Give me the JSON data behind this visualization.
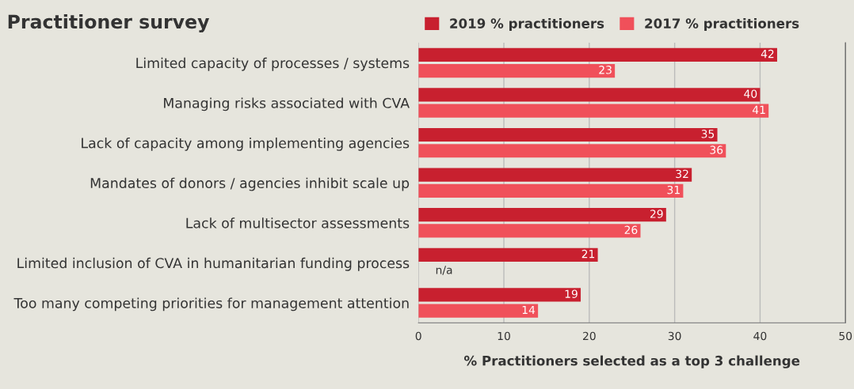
{
  "chart_data": {
    "type": "bar",
    "orientation": "horizontal",
    "title": "Practitioner survey",
    "xlabel": "% Practitioners selected as a top 3 challenge",
    "categories": [
      "Limited capacity of processes / systems",
      "Managing risks associated with CVA",
      "Lack of capacity among implementing agencies",
      "Mandates of donors / agencies inhibit scale up",
      "Lack of multisector assessments",
      "Limited inclusion of CVA in humanitarian funding process",
      "Too many competing priorities for management attention"
    ],
    "series": [
      {
        "name": "2019 % practitioners",
        "color": "#c8202f",
        "values": [
          42,
          40,
          35,
          32,
          29,
          21,
          19
        ],
        "value_labels": [
          "42",
          "40",
          "35",
          "32",
          "29",
          "21",
          "19"
        ]
      },
      {
        "name": "2017 % practitioners",
        "color": "#f0505a",
        "values": [
          23,
          41,
          36,
          31,
          26,
          null,
          14
        ],
        "value_labels": [
          "23",
          "41",
          "36",
          "31",
          "26",
          "n/a",
          "14"
        ]
      }
    ],
    "xlim": [
      0,
      50
    ],
    "xticks": [
      0,
      10,
      20,
      30,
      40,
      50
    ],
    "grid": "x",
    "legend": "top right"
  }
}
